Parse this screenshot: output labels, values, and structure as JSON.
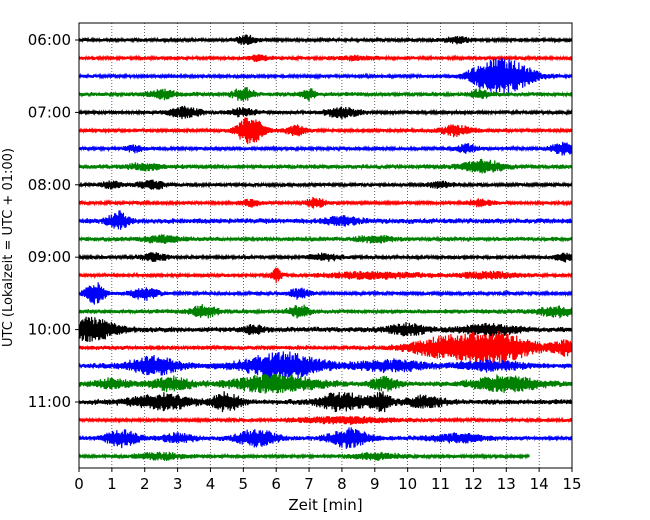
{
  "chart_data": {
    "type": "line",
    "title": "",
    "xlabel": "Zeit  [min]",
    "ylabel": "UTC (Lokalzeit = UTC + 01:00)",
    "xlim": [
      0,
      15
    ],
    "x_ticks": [
      0,
      1,
      2,
      3,
      4,
      5,
      6,
      7,
      8,
      9,
      10,
      11,
      12,
      13,
      14,
      15
    ],
    "y_tick_labels": [
      "06:00",
      "07:00",
      "08:00",
      "09:00",
      "10:00",
      "11:00"
    ],
    "grid": "vertical dotted at each minute",
    "row_interval_min": 15,
    "color_cycle": [
      "#000000",
      "#ff0000",
      "#0000ff",
      "#008000"
    ],
    "rows": [
      {
        "start": "06:00",
        "color": "#000000",
        "end_min": 15,
        "base_amp": 2,
        "events": [
          {
            "t": 5.1,
            "amp": 4,
            "dur": 0.3
          },
          {
            "t": 11.5,
            "amp": 3,
            "dur": 0.4
          }
        ]
      },
      {
        "start": "06:15",
        "color": "#ff0000",
        "end_min": 15,
        "base_amp": 2,
        "events": [
          {
            "t": 5.5,
            "amp": 3,
            "dur": 0.3
          },
          {
            "t": 8.5,
            "amp": 2,
            "dur": 0.5
          }
        ]
      },
      {
        "start": "06:30",
        "color": "#0000ff",
        "end_min": 15,
        "base_amp": 2,
        "events": [
          {
            "t": 13.0,
            "amp": 16,
            "dur": 0.8
          },
          {
            "t": 12.3,
            "amp": 6,
            "dur": 0.5
          }
        ]
      },
      {
        "start": "06:45",
        "color": "#008000",
        "end_min": 15,
        "base_amp": 2.5,
        "events": [
          {
            "t": 5.0,
            "amp": 6,
            "dur": 0.3
          },
          {
            "t": 7.0,
            "amp": 5,
            "dur": 0.2
          },
          {
            "t": 2.5,
            "amp": 4,
            "dur": 0.4
          },
          {
            "t": 12.2,
            "amp": 4,
            "dur": 0.3
          }
        ]
      },
      {
        "start": "07:00",
        "color": "#000000",
        "end_min": 15,
        "base_amp": 2,
        "events": [
          {
            "t": 3.2,
            "amp": 5,
            "dur": 0.5
          },
          {
            "t": 5.0,
            "amp": 4,
            "dur": 0.4
          },
          {
            "t": 8.0,
            "amp": 5,
            "dur": 0.5
          }
        ]
      },
      {
        "start": "07:15",
        "color": "#ff0000",
        "end_min": 15,
        "base_amp": 2,
        "events": [
          {
            "t": 5.2,
            "amp": 14,
            "dur": 0.4
          },
          {
            "t": 6.6,
            "amp": 5,
            "dur": 0.3
          },
          {
            "t": 11.5,
            "amp": 5,
            "dur": 0.5
          }
        ]
      },
      {
        "start": "07:30",
        "color": "#0000ff",
        "end_min": 15,
        "base_amp": 2,
        "events": [
          {
            "t": 14.8,
            "amp": 6,
            "dur": 0.4
          },
          {
            "t": 11.8,
            "amp": 4,
            "dur": 0.3
          },
          {
            "t": 1.7,
            "amp": 3,
            "dur": 0.3
          }
        ]
      },
      {
        "start": "07:45",
        "color": "#008000",
        "end_min": 15,
        "base_amp": 2.5,
        "events": [
          {
            "t": 12.3,
            "amp": 6,
            "dur": 0.6
          },
          {
            "t": 2.0,
            "amp": 3,
            "dur": 0.5
          }
        ]
      },
      {
        "start": "08:00",
        "color": "#000000",
        "end_min": 15,
        "base_amp": 2,
        "events": [
          {
            "t": 2.2,
            "amp": 5,
            "dur": 0.4
          },
          {
            "t": 1.0,
            "amp": 4,
            "dur": 0.3
          },
          {
            "t": 11.0,
            "amp": 3,
            "dur": 0.4
          }
        ]
      },
      {
        "start": "08:15",
        "color": "#ff0000",
        "end_min": 15,
        "base_amp": 2,
        "events": [
          {
            "t": 7.2,
            "amp": 5,
            "dur": 0.3
          },
          {
            "t": 5.2,
            "amp": 3,
            "dur": 0.3
          },
          {
            "t": 12.2,
            "amp": 3,
            "dur": 0.4
          }
        ]
      },
      {
        "start": "08:30",
        "color": "#0000ff",
        "end_min": 15,
        "base_amp": 3,
        "events": [
          {
            "t": 1.2,
            "amp": 8,
            "dur": 0.3
          },
          {
            "t": 8.0,
            "amp": 4,
            "dur": 0.5
          }
        ]
      },
      {
        "start": "08:45",
        "color": "#008000",
        "end_min": 15,
        "base_amp": 2.5,
        "events": [
          {
            "t": 2.5,
            "amp": 3,
            "dur": 0.6
          },
          {
            "t": 9.0,
            "amp": 3,
            "dur": 0.5
          }
        ]
      },
      {
        "start": "09:00",
        "color": "#000000",
        "end_min": 15,
        "base_amp": 2,
        "events": [
          {
            "t": 2.3,
            "amp": 4,
            "dur": 0.4
          },
          {
            "t": 14.8,
            "amp": 4,
            "dur": 0.3
          },
          {
            "t": 7.5,
            "amp": 3,
            "dur": 0.5
          }
        ]
      },
      {
        "start": "09:15",
        "color": "#ff0000",
        "end_min": 15,
        "base_amp": 2,
        "events": [
          {
            "t": 6.0,
            "amp": 7,
            "dur": 0.15
          },
          {
            "t": 9.0,
            "amp": 3,
            "dur": 1.5
          },
          {
            "t": 12.5,
            "amp": 3,
            "dur": 1.0
          }
        ]
      },
      {
        "start": "09:30",
        "color": "#0000ff",
        "end_min": 15,
        "base_amp": 2,
        "events": [
          {
            "t": 0.5,
            "amp": 10,
            "dur": 0.3
          },
          {
            "t": 2.0,
            "amp": 6,
            "dur": 0.4
          },
          {
            "t": 6.7,
            "amp": 5,
            "dur": 0.3
          }
        ]
      },
      {
        "start": "09:45",
        "color": "#008000",
        "end_min": 15,
        "base_amp": 2.5,
        "events": [
          {
            "t": 3.8,
            "amp": 6,
            "dur": 0.4
          },
          {
            "t": 6.7,
            "amp": 6,
            "dur": 0.3
          },
          {
            "t": 14.5,
            "amp": 5,
            "dur": 0.5
          }
        ]
      },
      {
        "start": "10:00",
        "color": "#000000",
        "end_min": 15,
        "base_amp": 3,
        "events": [
          {
            "t": 0.3,
            "amp": 11,
            "dur": 0.8
          },
          {
            "t": 5.3,
            "amp": 4,
            "dur": 0.3
          },
          {
            "t": 10.0,
            "amp": 5,
            "dur": 0.6
          },
          {
            "t": 12.5,
            "amp": 5,
            "dur": 0.8
          }
        ]
      },
      {
        "start": "10:15",
        "color": "#ff0000",
        "end_min": 15,
        "base_amp": 2.5,
        "events": [
          {
            "t": 12.6,
            "amp": 15,
            "dur": 1.2
          },
          {
            "t": 11.0,
            "amp": 8,
            "dur": 1.0
          },
          {
            "t": 14.8,
            "amp": 7,
            "dur": 0.4
          }
        ]
      },
      {
        "start": "10:30",
        "color": "#0000ff",
        "end_min": 15,
        "base_amp": 3,
        "events": [
          {
            "t": 6.2,
            "amp": 12,
            "dur": 1.2
          },
          {
            "t": 2.3,
            "amp": 8,
            "dur": 0.8
          },
          {
            "t": 9.5,
            "amp": 5,
            "dur": 1.0
          },
          {
            "t": 12.5,
            "amp": 4,
            "dur": 1.0
          }
        ]
      },
      {
        "start": "10:45",
        "color": "#008000",
        "end_min": 15,
        "base_amp": 3,
        "events": [
          {
            "t": 6.0,
            "amp": 8,
            "dur": 1.3
          },
          {
            "t": 2.8,
            "amp": 6,
            "dur": 0.6
          },
          {
            "t": 9.3,
            "amp": 6,
            "dur": 0.4
          },
          {
            "t": 13.0,
            "amp": 7,
            "dur": 1.0
          },
          {
            "t": 1.0,
            "amp": 4,
            "dur": 0.5
          }
        ]
      },
      {
        "start": "11:00",
        "color": "#000000",
        "end_min": 15,
        "base_amp": 3,
        "events": [
          {
            "t": 2.5,
            "amp": 7,
            "dur": 0.9
          },
          {
            "t": 4.5,
            "amp": 9,
            "dur": 0.4
          },
          {
            "t": 8.0,
            "amp": 9,
            "dur": 0.7
          },
          {
            "t": 9.2,
            "amp": 9,
            "dur": 0.3
          },
          {
            "t": 10.5,
            "amp": 5,
            "dur": 0.6
          }
        ]
      },
      {
        "start": "11:15",
        "color": "#ff0000",
        "end_min": 15,
        "base_amp": 2,
        "events": [
          {
            "t": 8.0,
            "amp": 3,
            "dur": 1.5
          }
        ]
      },
      {
        "start": "11:30",
        "color": "#0000ff",
        "end_min": 15,
        "base_amp": 2.5,
        "events": [
          {
            "t": 1.3,
            "amp": 8,
            "dur": 0.5
          },
          {
            "t": 5.4,
            "amp": 8,
            "dur": 0.6
          },
          {
            "t": 8.2,
            "amp": 9,
            "dur": 0.6
          },
          {
            "t": 3.0,
            "amp": 4,
            "dur": 0.5
          },
          {
            "t": 11.5,
            "amp": 4,
            "dur": 0.8
          }
        ]
      },
      {
        "start": "11:45",
        "color": "#008000",
        "end_min": 13.7,
        "base_amp": 2,
        "events": [
          {
            "t": 2.5,
            "amp": 3,
            "dur": 0.8
          },
          {
            "t": 9.0,
            "amp": 3,
            "dur": 0.8
          }
        ]
      }
    ]
  }
}
